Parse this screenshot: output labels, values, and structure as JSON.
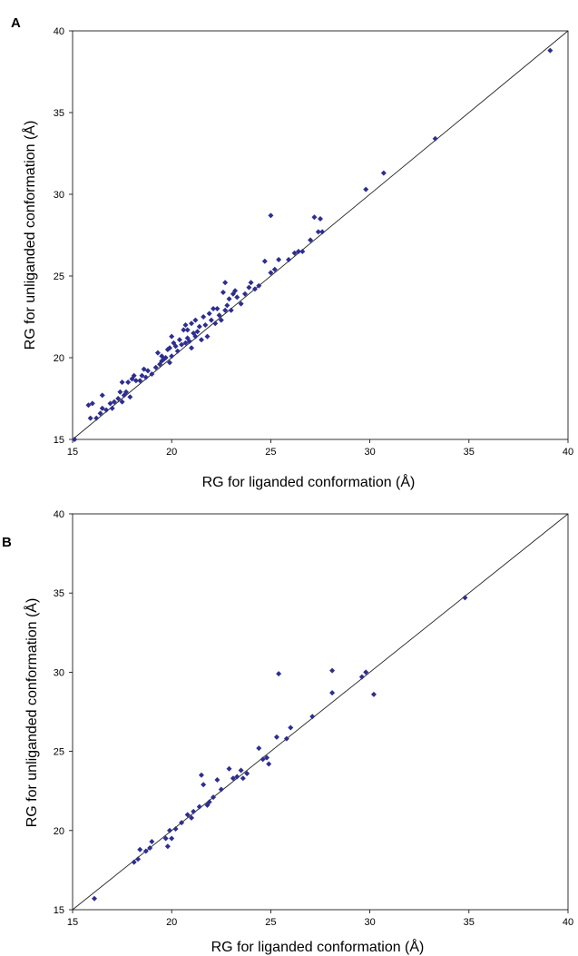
{
  "chart_data": [
    {
      "panel": "A",
      "type": "scatter",
      "xlabel": "RG for liganded conformation (Å)",
      "ylabel": "RG for unliganded conformation (Å)",
      "xlim": [
        15,
        40
      ],
      "ylim": [
        15,
        40
      ],
      "xticks": [
        15,
        20,
        25,
        30,
        35,
        40
      ],
      "yticks": [
        15,
        20,
        25,
        30,
        35,
        40
      ],
      "grid": false,
      "identity_line": true,
      "marker_color": "#2e2e8f",
      "points": [
        [
          15.1,
          15.0
        ],
        [
          15.9,
          16.3
        ],
        [
          15.8,
          17.1
        ],
        [
          16.0,
          17.2
        ],
        [
          16.2,
          16.3
        ],
        [
          16.4,
          16.6
        ],
        [
          16.5,
          16.9
        ],
        [
          16.5,
          17.7
        ],
        [
          16.7,
          16.8
        ],
        [
          16.9,
          17.2
        ],
        [
          17.0,
          16.9
        ],
        [
          17.1,
          17.3
        ],
        [
          17.3,
          17.5
        ],
        [
          17.4,
          17.9
        ],
        [
          17.5,
          17.3
        ],
        [
          17.5,
          18.5
        ],
        [
          17.6,
          17.7
        ],
        [
          17.7,
          17.9
        ],
        [
          17.8,
          18.5
        ],
        [
          17.9,
          17.6
        ],
        [
          18.0,
          18.7
        ],
        [
          18.1,
          18.9
        ],
        [
          18.2,
          18.6
        ],
        [
          18.4,
          18.6
        ],
        [
          18.5,
          18.9
        ],
        [
          18.6,
          19.3
        ],
        [
          18.7,
          18.8
        ],
        [
          18.8,
          19.2
        ],
        [
          19.0,
          19.0
        ],
        [
          19.2,
          19.4
        ],
        [
          19.3,
          20.3
        ],
        [
          19.4,
          19.6
        ],
        [
          19.5,
          19.8
        ],
        [
          19.5,
          20.1
        ],
        [
          19.6,
          19.9
        ],
        [
          19.7,
          20.0
        ],
        [
          19.8,
          20.5
        ],
        [
          19.9,
          20.6
        ],
        [
          19.9,
          19.7
        ],
        [
          20.0,
          20.1
        ],
        [
          20.0,
          21.3
        ],
        [
          20.1,
          20.9
        ],
        [
          20.2,
          20.7
        ],
        [
          20.3,
          20.4
        ],
        [
          20.4,
          21.1
        ],
        [
          20.5,
          20.8
        ],
        [
          20.6,
          21.7
        ],
        [
          20.7,
          20.9
        ],
        [
          20.7,
          22.0
        ],
        [
          20.8,
          21.2
        ],
        [
          20.8,
          21.7
        ],
        [
          20.9,
          21.0
        ],
        [
          21.0,
          20.6
        ],
        [
          21.0,
          22.1
        ],
        [
          21.1,
          21.5
        ],
        [
          21.2,
          21.3
        ],
        [
          21.2,
          22.3
        ],
        [
          21.3,
          21.6
        ],
        [
          21.4,
          21.9
        ],
        [
          21.5,
          21.1
        ],
        [
          21.6,
          22.5
        ],
        [
          21.7,
          22.0
        ],
        [
          21.8,
          21.3
        ],
        [
          21.9,
          22.7
        ],
        [
          22.0,
          22.3
        ],
        [
          22.1,
          23.0
        ],
        [
          22.2,
          22.1
        ],
        [
          22.3,
          23.0
        ],
        [
          22.4,
          22.6
        ],
        [
          22.5,
          22.3
        ],
        [
          22.6,
          24.0
        ],
        [
          22.7,
          22.9
        ],
        [
          22.7,
          24.6
        ],
        [
          22.8,
          23.2
        ],
        [
          22.9,
          23.6
        ],
        [
          23.0,
          22.9
        ],
        [
          23.1,
          23.9
        ],
        [
          23.2,
          24.1
        ],
        [
          23.3,
          23.7
        ],
        [
          23.5,
          23.3
        ],
        [
          23.7,
          23.9
        ],
        [
          23.9,
          24.3
        ],
        [
          24.0,
          24.6
        ],
        [
          24.2,
          24.2
        ],
        [
          24.4,
          24.4
        ],
        [
          24.7,
          25.9
        ],
        [
          25.0,
          25.2
        ],
        [
          25.0,
          28.7
        ],
        [
          25.2,
          25.4
        ],
        [
          25.4,
          26.0
        ],
        [
          25.9,
          26.0
        ],
        [
          26.2,
          26.4
        ],
        [
          26.4,
          26.5
        ],
        [
          26.6,
          26.5
        ],
        [
          27.0,
          27.2
        ],
        [
          27.2,
          28.6
        ],
        [
          27.4,
          27.7
        ],
        [
          27.5,
          28.5
        ],
        [
          27.6,
          27.7
        ],
        [
          29.8,
          30.3
        ],
        [
          30.7,
          31.3
        ],
        [
          33.3,
          33.4
        ],
        [
          39.1,
          38.8
        ]
      ]
    },
    {
      "panel": "B",
      "type": "scatter",
      "xlabel": "RG for liganded conformation (Å)",
      "ylabel": "RG for unliganded conformation (Å)",
      "xlim": [
        15,
        40
      ],
      "ylim": [
        15,
        40
      ],
      "xticks": [
        15,
        20,
        25,
        30,
        35,
        40
      ],
      "yticks": [
        15,
        20,
        25,
        30,
        35,
        40
      ],
      "grid": false,
      "identity_line": true,
      "marker_color": "#2e2e8f",
      "points": [
        [
          16.1,
          15.7
        ],
        [
          18.1,
          18.0
        ],
        [
          18.3,
          18.2
        ],
        [
          18.4,
          18.8
        ],
        [
          18.7,
          18.7
        ],
        [
          18.9,
          18.9
        ],
        [
          19.0,
          19.3
        ],
        [
          19.7,
          19.5
        ],
        [
          19.8,
          19.0
        ],
        [
          19.9,
          20.0
        ],
        [
          20.0,
          19.5
        ],
        [
          20.2,
          20.1
        ],
        [
          20.5,
          20.5
        ],
        [
          20.8,
          21.0
        ],
        [
          21.0,
          20.8
        ],
        [
          21.1,
          21.2
        ],
        [
          21.4,
          21.5
        ],
        [
          21.5,
          23.5
        ],
        [
          21.6,
          22.9
        ],
        [
          21.8,
          21.6
        ],
        [
          21.9,
          21.8
        ],
        [
          22.1,
          22.1
        ],
        [
          22.3,
          23.2
        ],
        [
          22.5,
          22.6
        ],
        [
          22.9,
          23.9
        ],
        [
          23.1,
          23.3
        ],
        [
          23.3,
          23.4
        ],
        [
          23.5,
          23.8
        ],
        [
          23.6,
          23.3
        ],
        [
          23.8,
          23.6
        ],
        [
          24.4,
          25.2
        ],
        [
          24.6,
          24.5
        ],
        [
          24.8,
          24.6
        ],
        [
          24.9,
          24.2
        ],
        [
          25.3,
          25.9
        ],
        [
          25.4,
          29.9
        ],
        [
          25.8,
          25.8
        ],
        [
          26.0,
          26.5
        ],
        [
          27.1,
          27.2
        ],
        [
          28.1,
          28.7
        ],
        [
          28.1,
          30.1
        ],
        [
          29.6,
          29.7
        ],
        [
          29.8,
          30.0
        ],
        [
          30.2,
          28.6
        ],
        [
          34.8,
          34.7
        ]
      ]
    }
  ],
  "panels": [
    {
      "letter": "A",
      "xlabel": "RG for liganded conformation (Å)",
      "ylabel": "RG for unliganded conformation (Å)"
    },
    {
      "letter": "B",
      "xlabel": "RG for liganded conformation (Å)",
      "ylabel": "RG for unliganded conformation (Å)"
    }
  ]
}
